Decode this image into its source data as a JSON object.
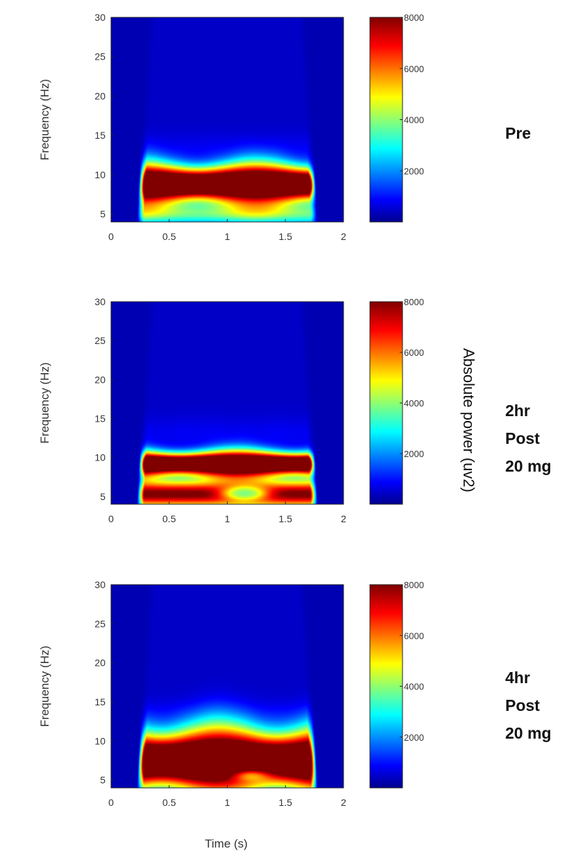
{
  "chart_data": {
    "type": "heatmap",
    "xlabel": "Time (s)",
    "ylabel": "Frequency  (Hz)",
    "xlim": [
      0,
      2
    ],
    "ylim": [
      4,
      30
    ],
    "x_ticks": [
      "0",
      "0.5",
      "1",
      "1.5",
      "2"
    ],
    "x_tick_values": [
      0,
      0.5,
      1,
      1.5,
      2
    ],
    "y_ticks": [
      "5",
      "10",
      "15",
      "20",
      "25",
      "30"
    ],
    "y_tick_values": [
      5,
      10,
      15,
      20,
      25,
      30
    ],
    "colorbar": {
      "label": "Absolute  power (uv2)",
      "range": [
        0,
        8000
      ],
      "ticks": [
        "2000",
        "4000",
        "6000",
        "8000"
      ],
      "tick_values": [
        2000,
        4000,
        6000,
        8000
      ],
      "colormap": "jet"
    },
    "panels": [
      {
        "condition_lines": [
          "Pre"
        ],
        "band": {
          "peak_hz": 8.8,
          "width_hz": 2.3,
          "power": 8000
        },
        "sub": {
          "peak_hz": 5.0,
          "width_hz": 1.4,
          "power": 3100
        },
        "spot": null
      },
      {
        "condition_lines": [
          "2hr",
          "Post",
          "20 mg"
        ],
        "band": {
          "peak_hz": 9.2,
          "width_hz": 1.5,
          "power": 8000
        },
        "sub": {
          "peak_hz": 5.3,
          "width_hz": 1.9,
          "power": 7600
        },
        "spot": {
          "time_s": 1.15,
          "freq_hz": 5.4,
          "power": 4000
        }
      },
      {
        "condition_lines": [
          "4hr",
          "Post",
          "20 mg"
        ],
        "band": {
          "peak_hz": 7.5,
          "width_hz": 3.8,
          "power": 8000
        },
        "sub": null,
        "spot": {
          "time_s": 1.2,
          "freq_hz": 5.6,
          "power": 6500
        }
      }
    ]
  }
}
